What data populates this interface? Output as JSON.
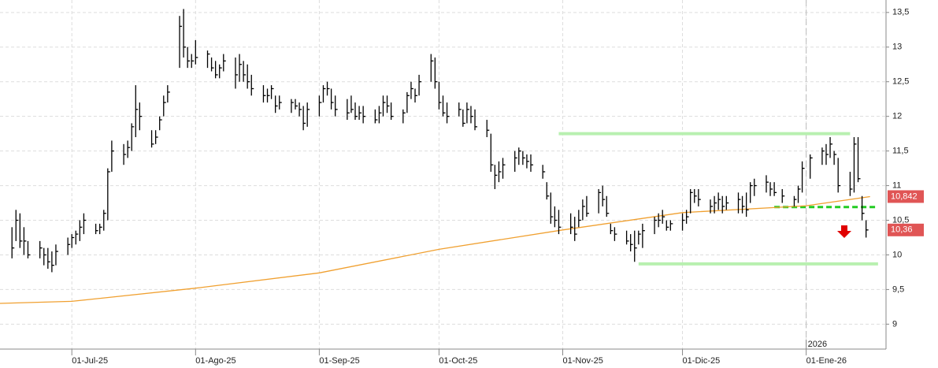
{
  "chart_data": {
    "type": "ohlc",
    "x": [
      "2025-06-16",
      "2025-06-17",
      "2025-06-18",
      "2025-06-19",
      "2025-06-20",
      "2025-06-23",
      "2025-06-24",
      "2025-06-25",
      "2025-06-26",
      "2025-06-27",
      "2025-06-30",
      "2025-07-01",
      "2025-07-02",
      "2025-07-03",
      "2025-07-04",
      "2025-07-07",
      "2025-07-08",
      "2025-07-09",
      "2025-07-10",
      "2025-07-11",
      "2025-07-14",
      "2025-07-15",
      "2025-07-16",
      "2025-07-17",
      "2025-07-18",
      "2025-07-21",
      "2025-07-22",
      "2025-07-23",
      "2025-07-24",
      "2025-07-25",
      "2025-07-28",
      "2025-07-29",
      "2025-07-30",
      "2025-07-31",
      "2025-08-01",
      "2025-08-04",
      "2025-08-05",
      "2025-08-06",
      "2025-08-07",
      "2025-08-08",
      "2025-08-11",
      "2025-08-12",
      "2025-08-13",
      "2025-08-14",
      "2025-08-15",
      "2025-08-18",
      "2025-08-19",
      "2025-08-20",
      "2025-08-21",
      "2025-08-22",
      "2025-08-25",
      "2025-08-26",
      "2025-08-27",
      "2025-08-28",
      "2025-08-29",
      "2025-09-01",
      "2025-09-02",
      "2025-09-03",
      "2025-09-04",
      "2025-09-05",
      "2025-09-08",
      "2025-09-09",
      "2025-09-10",
      "2025-09-11",
      "2025-09-12",
      "2025-09-15",
      "2025-09-16",
      "2025-09-17",
      "2025-09-18",
      "2025-09-19",
      "2025-09-22",
      "2025-09-23",
      "2025-09-24",
      "2025-09-25",
      "2025-09-26",
      "2025-09-29",
      "2025-09-30",
      "2025-10-01",
      "2025-10-02",
      "2025-10-03",
      "2025-10-06",
      "2025-10-07",
      "2025-10-08",
      "2025-10-09",
      "2025-10-10",
      "2025-10-13",
      "2025-10-14",
      "2025-10-15",
      "2025-10-16",
      "2025-10-17",
      "2025-10-20",
      "2025-10-21",
      "2025-10-22",
      "2025-10-23",
      "2025-10-24",
      "2025-10-27",
      "2025-10-28",
      "2025-10-29",
      "2025-10-30",
      "2025-10-31",
      "2025-11-03",
      "2025-11-04",
      "2025-11-05",
      "2025-11-06",
      "2025-11-07",
      "2025-11-10",
      "2025-11-11",
      "2025-11-12",
      "2025-11-13",
      "2025-11-14",
      "2025-11-17",
      "2025-11-18",
      "2025-11-19",
      "2025-11-20",
      "2025-11-21",
      "2025-11-24",
      "2025-11-25",
      "2025-11-26",
      "2025-11-27",
      "2025-11-28",
      "2025-12-01",
      "2025-12-02",
      "2025-12-03",
      "2025-12-04",
      "2025-12-05",
      "2025-12-08",
      "2025-12-09",
      "2025-12-10",
      "2025-12-11",
      "2025-12-12",
      "2025-12-15",
      "2025-12-16",
      "2025-12-17",
      "2025-12-18",
      "2025-12-19",
      "2025-12-22",
      "2025-12-23",
      "2025-12-24",
      "2025-12-26",
      "2025-12-29",
      "2025-12-30",
      "2025-12-31",
      "2026-01-02",
      "2026-01-05",
      "2026-01-06",
      "2026-01-07",
      "2026-01-08",
      "2026-01-09",
      "2026-01-12",
      "2026-01-13",
      "2026-01-14",
      "2026-01-15",
      "2026-01-16"
    ],
    "high": [
      10.4,
      10.65,
      10.6,
      10.4,
      10.2,
      10.2,
      10.1,
      10.1,
      10.05,
      10.15,
      10.25,
      10.3,
      10.35,
      10.5,
      10.6,
      10.45,
      10.45,
      10.65,
      11.25,
      11.65,
      11.6,
      11.65,
      11.9,
      12.45,
      12.2,
      11.8,
      11.8,
      12.0,
      12.3,
      12.45,
      13.45,
      13.55,
      13.0,
      12.9,
      13.1,
      12.95,
      12.85,
      12.8,
      12.75,
      12.9,
      12.85,
      12.9,
      12.8,
      12.75,
      12.6,
      12.45,
      12.4,
      12.45,
      12.3,
      12.3,
      12.25,
      12.25,
      12.2,
      12.15,
      12.2,
      12.3,
      12.45,
      12.5,
      12.4,
      12.3,
      12.25,
      12.3,
      12.2,
      12.15,
      12.15,
      12.1,
      12.15,
      12.3,
      12.3,
      12.2,
      12.1,
      12.35,
      12.5,
      12.4,
      12.6,
      12.9,
      12.85,
      12.5,
      12.3,
      12.2,
      12.2,
      12.1,
      12.2,
      12.15,
      12.1,
      11.95,
      11.75,
      11.3,
      11.35,
      11.4,
      11.5,
      11.55,
      11.5,
      11.45,
      11.45,
      11.3,
      11.05,
      10.9,
      10.7,
      10.65,
      10.6,
      10.55,
      10.65,
      10.8,
      10.85,
      10.95,
      11.0,
      10.85,
      10.45,
      10.4,
      10.35,
      10.3,
      10.35,
      10.35,
      10.45,
      10.55,
      10.6,
      10.65,
      10.5,
      10.5,
      10.6,
      10.65,
      10.95,
      10.95,
      10.95,
      10.8,
      10.85,
      10.9,
      10.85,
      10.85,
      10.9,
      10.85,
      10.9,
      11.05,
      11.1,
      11.15,
      11.05,
      11.05,
      10.95,
      10.85,
      11.0,
      11.35,
      11.45,
      11.55,
      11.6,
      11.7,
      11.5,
      11.4,
      11.2,
      11.7,
      11.7,
      10.85,
      10.5
    ],
    "low": [
      9.95,
      10.2,
      10.1,
      10.0,
      9.95,
      9.95,
      9.85,
      9.8,
      9.75,
      9.85,
      10.0,
      10.1,
      10.15,
      10.2,
      10.3,
      10.3,
      10.3,
      10.35,
      10.5,
      11.2,
      11.3,
      11.4,
      11.5,
      11.7,
      11.8,
      11.55,
      11.6,
      11.8,
      12.0,
      12.2,
      12.7,
      12.85,
      12.7,
      12.7,
      12.75,
      12.7,
      12.65,
      12.55,
      12.55,
      12.65,
      12.4,
      12.5,
      12.5,
      12.4,
      12.3,
      12.2,
      12.2,
      12.25,
      12.05,
      12.1,
      12.05,
      12.1,
      12.0,
      11.8,
      11.85,
      12.0,
      12.2,
      12.3,
      12.1,
      12.0,
      11.95,
      12.05,
      11.95,
      11.95,
      11.9,
      11.9,
      11.9,
      12.0,
      12.05,
      11.95,
      11.9,
      12.05,
      12.25,
      12.2,
      12.3,
      12.5,
      12.4,
      12.1,
      12.0,
      11.9,
      12.0,
      11.85,
      11.9,
      11.9,
      11.8,
      11.7,
      11.2,
      10.95,
      11.05,
      11.1,
      11.2,
      11.3,
      11.3,
      11.25,
      11.2,
      11.1,
      10.8,
      10.45,
      10.4,
      10.3,
      10.3,
      10.2,
      10.4,
      10.5,
      10.55,
      10.6,
      10.7,
      10.55,
      10.3,
      10.2,
      10.15,
      10.05,
      9.9,
      10.15,
      10.1,
      10.3,
      10.4,
      10.45,
      10.35,
      10.35,
      10.35,
      10.45,
      10.6,
      10.75,
      10.7,
      10.6,
      10.6,
      10.65,
      10.6,
      10.65,
      10.6,
      10.6,
      10.55,
      10.75,
      10.85,
      10.9,
      10.85,
      10.85,
      10.75,
      10.7,
      10.75,
      10.9,
      11.1,
      11.3,
      11.3,
      11.4,
      11.3,
      10.9,
      10.85,
      10.9,
      11.05,
      10.5,
      10.25
    ],
    "close": [
      10.1,
      10.5,
      10.2,
      10.2,
      10.0,
      10.1,
      10.0,
      9.9,
      9.85,
      10.05,
      10.15,
      10.25,
      10.3,
      10.4,
      10.5,
      10.35,
      10.4,
      10.6,
      11.2,
      11.5,
      11.45,
      11.55,
      11.85,
      12.1,
      12.0,
      11.6,
      11.7,
      11.95,
      12.2,
      12.35,
      13.3,
      13.0,
      12.8,
      12.8,
      12.85,
      12.9,
      12.7,
      12.6,
      12.7,
      12.8,
      12.6,
      12.75,
      12.6,
      12.5,
      12.4,
      12.3,
      12.3,
      12.4,
      12.15,
      12.2,
      12.2,
      12.15,
      12.1,
      11.9,
      12.1,
      12.2,
      12.4,
      12.4,
      12.2,
      12.1,
      12.05,
      12.1,
      12.0,
      12.05,
      12.0,
      11.95,
      12.05,
      12.2,
      12.15,
      12.0,
      12.05,
      12.3,
      12.4,
      12.3,
      12.5,
      12.8,
      12.5,
      12.2,
      12.05,
      12.0,
      12.1,
      11.9,
      12.1,
      12.0,
      11.85,
      11.8,
      11.3,
      11.15,
      11.2,
      11.3,
      11.4,
      11.5,
      11.4,
      11.35,
      11.3,
      11.2,
      10.85,
      10.55,
      10.5,
      10.4,
      10.4,
      10.3,
      10.5,
      10.7,
      10.6,
      10.9,
      10.8,
      10.6,
      10.35,
      10.3,
      10.2,
      10.15,
      10.1,
      10.3,
      10.35,
      10.5,
      10.5,
      10.55,
      10.4,
      10.45,
      10.5,
      10.55,
      10.9,
      10.85,
      10.8,
      10.7,
      10.75,
      10.8,
      10.7,
      10.75,
      10.8,
      10.7,
      10.65,
      11.0,
      11.0,
      11.05,
      10.95,
      10.9,
      10.85,
      10.8,
      10.95,
      11.25,
      11.4,
      11.5,
      11.45,
      11.6,
      11.45,
      11.0,
      10.95,
      11.6,
      11.1,
      10.6,
      10.36
    ],
    "bar_color": "#000000",
    "moving_average": {
      "color": "#f0a030",
      "x": [
        "2025-06-13",
        "2025-07-01",
        "2025-08-01",
        "2025-09-01",
        "2025-10-01",
        "2025-11-01",
        "2025-12-01",
        "2026-01-01",
        "2026-01-17"
      ],
      "values": [
        9.3,
        9.33,
        9.52,
        9.74,
        10.08,
        10.36,
        10.61,
        10.71,
        10.842
      ]
    },
    "levels": [
      {
        "value": 11.75,
        "from": "2025-10-31",
        "to": "2026-01-12",
        "color": "#b8f0b0",
        "dashed": false
      },
      {
        "value": 9.87,
        "from": "2025-11-20",
        "to": "2026-01-19",
        "color": "#b8f0b0",
        "dashed": false
      },
      {
        "value": 10.69,
        "from": "2025-12-24",
        "to": "2026-01-19",
        "color": "#22cc22",
        "dashed": true
      }
    ],
    "price_labels": [
      {
        "value": 10.842,
        "label": "10,842",
        "color": "#e05555"
      },
      {
        "value": 10.36,
        "label": "10,36",
        "color": "#e05555"
      }
    ],
    "xlim": [
      "2025-06-13",
      "2026-01-21"
    ],
    "xticks": [
      {
        "value": "2025-07-01",
        "label": "01-Jul-25"
      },
      {
        "value": "2025-08-01",
        "label": "01-Ago-25"
      },
      {
        "value": "2025-09-01",
        "label": "01-Sep-25"
      },
      {
        "value": "2025-10-01",
        "label": "01-Oct-25"
      },
      {
        "value": "2025-11-01",
        "label": "01-Nov-25"
      },
      {
        "value": "2025-12-01",
        "label": "01-Dic-25"
      },
      {
        "value": "2026-01-01",
        "label": "01-Ene-26"
      }
    ],
    "year_marker": {
      "value": "2026-01-01",
      "label": "2026"
    },
    "ylim": [
      8.64,
      13.68
    ],
    "yticks": [
      9,
      {
        "value": 9.5,
        "label": "9,5"
      },
      10,
      {
        "value": 10.5,
        "label": "10,5"
      },
      11,
      {
        "value": 11.5,
        "label": "11,5"
      },
      12,
      {
        "value": 12.5,
        "label": "12,5"
      },
      13,
      {
        "value": 13.5,
        "label": "13,5"
      }
    ],
    "grid": true
  }
}
